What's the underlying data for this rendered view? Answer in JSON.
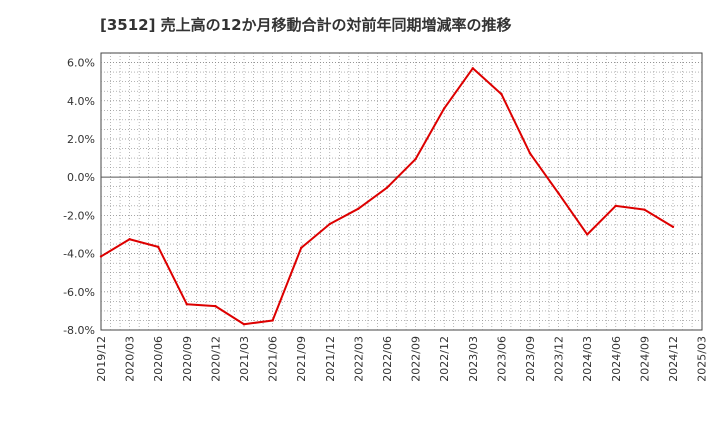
{
  "chart_data": {
    "type": "line",
    "title": "[3512]  売上高の12か月移動合計の対前年同期増減率の推移",
    "xlabel": "",
    "ylabel": "",
    "ylim": [
      -8,
      6.5
    ],
    "y_ticks": [
      6,
      4,
      2,
      0,
      -2,
      -4,
      -6,
      -8
    ],
    "y_tick_labels": [
      "6.0%",
      "4.0%",
      "2.0%",
      "0.0%",
      "-2.0%",
      "-4.0%",
      "-6.0%",
      "-8.0%"
    ],
    "x_ticks": [
      "2019/12",
      "2020/03",
      "2020/06",
      "2020/09",
      "2020/12",
      "2021/03",
      "2021/06",
      "2021/09",
      "2021/12",
      "2022/03",
      "2022/06",
      "2022/09",
      "2022/12",
      "2023/03",
      "2023/06",
      "2023/09",
      "2023/12",
      "2024/03",
      "2024/06",
      "2024/09",
      "2024/12",
      "2025/03"
    ],
    "grid": true,
    "series": [
      {
        "name": "売上高の12か月移動合計の対前年同期増減率",
        "color": "#dd0000",
        "x": [
          "2019/12",
          "2020/03",
          "2020/06",
          "2020/09",
          "2020/12",
          "2021/03",
          "2021/06",
          "2021/09",
          "2021/12",
          "2022/03",
          "2022/06",
          "2022/09",
          "2022/12",
          "2023/03",
          "2023/06",
          "2023/09",
          "2023/12",
          "2024/03",
          "2024/06",
          "2024/09",
          "2024/12"
        ],
        "values": [
          -4.15,
          -3.25,
          -3.65,
          -6.65,
          -6.75,
          -7.7,
          -7.5,
          -3.7,
          -2.45,
          -1.65,
          -0.55,
          0.95,
          3.6,
          5.7,
          4.35,
          1.25,
          -0.85,
          -3.0,
          -1.5,
          -1.7,
          -2.6
        ]
      }
    ]
  }
}
